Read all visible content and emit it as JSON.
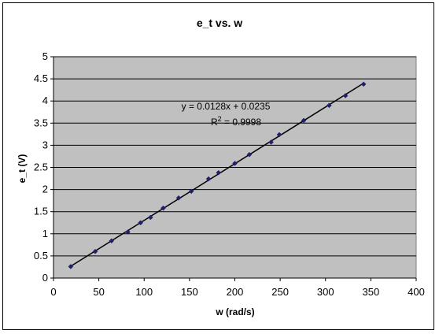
{
  "chart_data": {
    "type": "scatter",
    "title": "e_t vs. w",
    "xlabel": "w (rad/s)",
    "ylabel": "e_t (V)",
    "xlim": [
      0,
      400
    ],
    "ylim": [
      0,
      5
    ],
    "x_ticks": [
      0,
      50,
      100,
      150,
      200,
      250,
      300,
      350,
      400
    ],
    "y_ticks": [
      "0",
      "0.5",
      "1",
      "1.5",
      "2",
      "2.5",
      "3",
      "3.5",
      "4",
      "4.5",
      "5"
    ],
    "y_tick_values": [
      0,
      0.5,
      1,
      1.5,
      2,
      2.5,
      3,
      3.5,
      4,
      4.5,
      5
    ],
    "grid": "horizontal",
    "plot_background": "#c0c0c0",
    "marker_color": "#1f1f6b",
    "series": [
      {
        "x": [
          19,
          46,
          64,
          82,
          96,
          107,
          121,
          138,
          152,
          171,
          182,
          200,
          216,
          240,
          249,
          276,
          304,
          322,
          342
        ],
        "y": [
          0.26,
          0.6,
          0.84,
          1.04,
          1.25,
          1.37,
          1.58,
          1.81,
          1.96,
          2.24,
          2.38,
          2.59,
          2.79,
          3.07,
          3.24,
          3.56,
          3.9,
          4.12,
          4.38
        ]
      }
    ],
    "trendline": {
      "slope": 0.0128,
      "intercept": 0.0235,
      "x_range": [
        19,
        342
      ],
      "equation_line1": "y = 0.0128x + 0.0235",
      "equation_r2_prefix": "R",
      "equation_r2_sup": "2",
      "equation_r2_suffix": " = 0.9998"
    }
  }
}
